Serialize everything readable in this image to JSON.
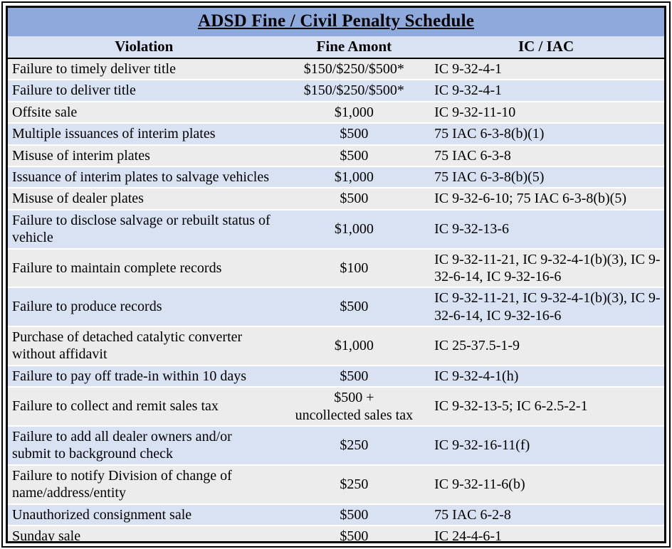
{
  "table": {
    "title": "ADSD Fine / Civil Penalty Schedule",
    "columns": [
      "Violation",
      "Fine Amont",
      "IC / IAC"
    ],
    "rows": [
      {
        "violation": "Failure to timely deliver title",
        "fine": "$150/$250/$500*",
        "ic": "IC 9-32-4-1"
      },
      {
        "violation": "Failure to deliver title",
        "fine": "$150/$250/$500*",
        "ic": "IC 9-32-4-1"
      },
      {
        "violation": "Offsite sale",
        "fine": "$1,000",
        "ic": "IC 9-32-11-10"
      },
      {
        "violation": "Multiple issuances of interim plates",
        "fine": "$500",
        "ic": "75 IAC 6-3-8(b)(1)"
      },
      {
        "violation": "Misuse of interim plates",
        "fine": "$500",
        "ic": "75 IAC 6-3-8"
      },
      {
        "violation": "Issuance of interim plates to salvage vehicles",
        "fine": "$1,000",
        "ic": "75 IAC 6-3-8(b)(5)"
      },
      {
        "violation": "Misuse of dealer plates",
        "fine": "$500",
        "ic": "IC 9-32-6-10; 75 IAC 6-3-8(b)(5)"
      },
      {
        "violation": "Failure to disclose salvage or rebuilt status of vehicle",
        "fine": "$1,000",
        "ic": "IC 9-32-13-6"
      },
      {
        "violation": "Failure to maintain complete records",
        "fine": "$100",
        "ic": "IC 9-32-11-21, IC 9-32-4-1(b)(3), IC 9-32-6-14, IC 9-32-16-6"
      },
      {
        "violation": "Failure to produce records",
        "fine": "$500",
        "ic": "IC 9-32-11-21, IC 9-32-4-1(b)(3), IC 9-32-6-14, IC 9-32-16-6"
      },
      {
        "violation": "Purchase of detached catalytic converter without affidavit",
        "fine": "$1,000",
        "ic": "IC 25-37.5-1-9"
      },
      {
        "violation": "Failure to pay off trade-in within 10 days",
        "fine": "$500",
        "ic": "IC 9-32-4-1(h)"
      },
      {
        "violation": "Failure to collect and remit sales tax",
        "fine": "$500 +\nuncollected sales tax",
        "ic": "IC 9-32-13-5; IC 6-2.5-2-1"
      },
      {
        "violation": "Failure to add all dealer owners and/or submit to background check",
        "fine": "$250",
        "ic": "IC 9-32-16-11(f)"
      },
      {
        "violation": "Failure to notify Division of change of name/address/entity",
        "fine": "$250",
        "ic": "IC 9-32-11-6(b)"
      },
      {
        "violation": "Unauthorized consignment sale",
        "fine": "$500",
        "ic": "75 IAC 6-2-8"
      },
      {
        "violation": "Sunday sale",
        "fine": "$500",
        "ic": "IC 24-4-6-1"
      }
    ],
    "colors": {
      "title_bg": "#8EA9DB",
      "header_bg": "#D9E2F3",
      "row_gray": "#ECECEC",
      "row_blue": "#D9E2F3",
      "border": "#000000",
      "row_separator": "#FFFFFF"
    }
  }
}
